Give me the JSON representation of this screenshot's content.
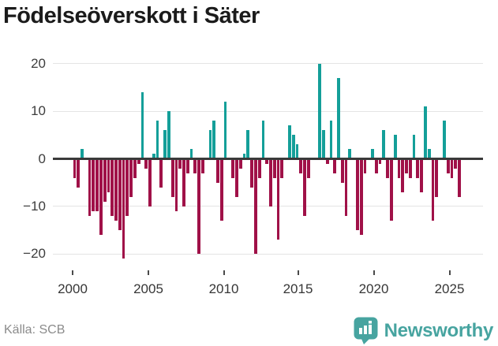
{
  "title": "Födelseöverskott i Säter",
  "source": "Källa: SCB",
  "brand": {
    "name": "Newsworthy",
    "icon": "bar-chart-speech-bubble"
  },
  "colors": {
    "positive": "#149f99",
    "negative": "#a01148",
    "brand_teal": "#47a4a0",
    "gridline": "#e4e4e4",
    "zeroline": "#3a3a3a"
  },
  "chart_data": {
    "type": "bar",
    "title": "Födelseöverskott i Säter",
    "xlabel": "",
    "ylabel": "",
    "frequency": "quarterly",
    "start_period": "2000Q1",
    "end_period": "2025Q3",
    "ylim": [
      -22,
      21
    ],
    "grid": true,
    "y_ticks": [
      20,
      10,
      0,
      -10,
      -20
    ],
    "y_tick_labels": [
      "20",
      "10",
      "0",
      "−10",
      "−20"
    ],
    "x_tick_labels": [
      "2000",
      "2005",
      "2010",
      "2015",
      "2020",
      "2025"
    ],
    "labels": [
      "2000Q1",
      "2000Q2",
      "2000Q3",
      "2000Q4",
      "2001Q1",
      "2001Q2",
      "2001Q3",
      "2001Q4",
      "2002Q1",
      "2002Q2",
      "2002Q3",
      "2002Q4",
      "2003Q1",
      "2003Q2",
      "2003Q3",
      "2003Q4",
      "2004Q1",
      "2004Q2",
      "2004Q3",
      "2004Q4",
      "2005Q1",
      "2005Q2",
      "2005Q3",
      "2005Q4",
      "2006Q1",
      "2006Q2",
      "2006Q3",
      "2006Q4",
      "2007Q1",
      "2007Q2",
      "2007Q3",
      "2007Q4",
      "2008Q1",
      "2008Q2",
      "2008Q3",
      "2008Q4",
      "2009Q1",
      "2009Q2",
      "2009Q3",
      "2009Q4",
      "2010Q1",
      "2010Q2",
      "2010Q3",
      "2010Q4",
      "2011Q1",
      "2011Q2",
      "2011Q3",
      "2011Q4",
      "2012Q1",
      "2012Q2",
      "2012Q3",
      "2012Q4",
      "2013Q1",
      "2013Q2",
      "2013Q3",
      "2013Q4",
      "2014Q1",
      "2014Q2",
      "2014Q3",
      "2014Q4",
      "2015Q1",
      "2015Q2",
      "2015Q3",
      "2015Q4",
      "2016Q1",
      "2016Q2",
      "2016Q3",
      "2016Q4",
      "2017Q1",
      "2017Q2",
      "2017Q3",
      "2017Q4",
      "2018Q1",
      "2018Q2",
      "2018Q3",
      "2018Q4",
      "2019Q1",
      "2019Q2",
      "2019Q3",
      "2019Q4",
      "2020Q1",
      "2020Q2",
      "2020Q3",
      "2020Q4",
      "2021Q1",
      "2021Q2",
      "2021Q3",
      "2021Q4",
      "2022Q1",
      "2022Q2",
      "2022Q3",
      "2022Q4",
      "2023Q1",
      "2023Q2",
      "2023Q3",
      "2023Q4",
      "2024Q1",
      "2024Q2",
      "2024Q3",
      "2024Q4",
      "2025Q1",
      "2025Q2",
      "2025Q3"
    ],
    "values": [
      -4,
      -6,
      2,
      0,
      -12,
      -11,
      -11,
      -16,
      -9,
      -7,
      -12,
      -13,
      -15,
      -21,
      -12,
      -8,
      -4,
      -1,
      14,
      -2,
      -10,
      1,
      8,
      -6,
      6,
      10,
      -8,
      -11,
      -2,
      -10,
      -3,
      2,
      -3,
      -20,
      -3,
      0,
      6,
      8,
      -5,
      -13,
      12,
      0,
      -4,
      -8,
      -2,
      1,
      6,
      -6,
      -20,
      -4,
      8,
      -1,
      -10,
      -4,
      -17,
      -4,
      0,
      7,
      5,
      3,
      -3,
      -12,
      -4,
      0,
      0,
      20,
      6,
      -1,
      8,
      -3,
      17,
      -5,
      -12,
      2,
      0,
      -15,
      -16,
      -3,
      0,
      2,
      -3,
      -1,
      6,
      -4,
      -13,
      5,
      -4,
      -7,
      -3,
      -4,
      5,
      -4,
      -7,
      11,
      2,
      -13,
      -8,
      0,
      8,
      -3,
      -4,
      -2,
      -8
    ]
  },
  "layout_note": "quarterly bar chart, teal positive, crimson negative"
}
